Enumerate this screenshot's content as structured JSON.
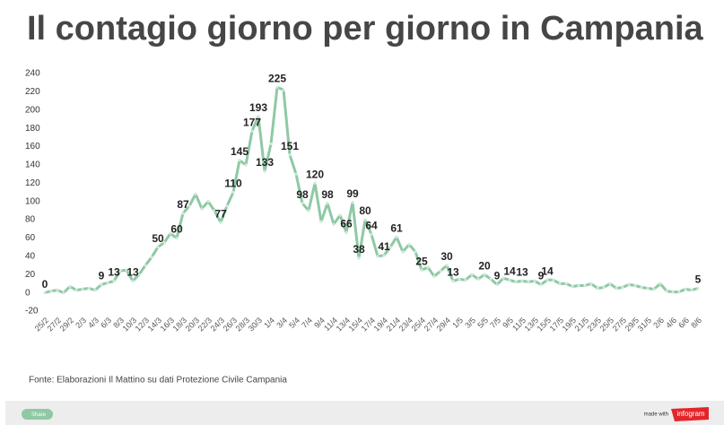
{
  "chart_data": {
    "type": "line",
    "title": "Il contagio giorno per giorno in Campania",
    "categories": [
      "25/2",
      null,
      "27/2",
      null,
      "29/2",
      null,
      "2/3",
      null,
      "4/3",
      null,
      "6/3",
      null,
      "8/3",
      null,
      "10/3",
      null,
      "12/3",
      null,
      "14/3",
      null,
      "16/3",
      null,
      "18/3",
      null,
      "20/3",
      null,
      "22/3",
      null,
      "24/3",
      null,
      "26/3",
      null,
      "28/3",
      null,
      "30/3",
      null,
      "1/4",
      null,
      "3/4",
      null,
      "5/4",
      null,
      "7/4",
      null,
      "9/4",
      null,
      "11/4",
      null,
      "13/4",
      null,
      "15/4",
      null,
      "17/4",
      null,
      "19/4",
      null,
      "21/4",
      null,
      "23/4",
      null,
      "25/4",
      null,
      "27/4",
      null,
      "29/4",
      null,
      "1/5",
      null,
      "3/5",
      null,
      "5/5",
      null,
      "7/5",
      null,
      "9/5",
      null,
      "11/5",
      null,
      "13/5",
      null,
      "15/5",
      null,
      "17/5",
      null,
      "19/5",
      null,
      "21/5",
      null,
      "23/5",
      null,
      "25/5",
      null,
      "27/5",
      null,
      "29/5",
      null,
      "31/5",
      null,
      "2/6",
      null,
      "4/6",
      null,
      "6/6",
      null,
      "8/6"
    ],
    "values": [
      0,
      2,
      3,
      0,
      7,
      3,
      4,
      5,
      3,
      9,
      11,
      13,
      24,
      25,
      13,
      20,
      30,
      39,
      50,
      55,
      65,
      60,
      87,
      95,
      108,
      92,
      100,
      90,
      77,
      95,
      110,
      145,
      140,
      177,
      193,
      133,
      163,
      225,
      222,
      151,
      130,
      98,
      90,
      120,
      78,
      98,
      75,
      85,
      66,
      99,
      38,
      80,
      64,
      40,
      41,
      50,
      61,
      45,
      53,
      45,
      25,
      28,
      18,
      24,
      30,
      13,
      15,
      14,
      20,
      15,
      20,
      15,
      9,
      16,
      14,
      12,
      13,
      12,
      13,
      9,
      14,
      14,
      10,
      10,
      7,
      8,
      8,
      10,
      5,
      6,
      10,
      5,
      6,
      9,
      8,
      6,
      5,
      4,
      10,
      2,
      1,
      1,
      4,
      3,
      5
    ],
    "value_labels": [
      0,
      null,
      null,
      null,
      null,
      null,
      null,
      null,
      null,
      9,
      null,
      13,
      null,
      null,
      13,
      null,
      null,
      null,
      50,
      null,
      null,
      60,
      87,
      null,
      null,
      null,
      null,
      null,
      77,
      null,
      110,
      145,
      null,
      177,
      193,
      133,
      null,
      225,
      null,
      151,
      null,
      98,
      null,
      120,
      null,
      98,
      null,
      null,
      66,
      99,
      38,
      80,
      64,
      null,
      41,
      null,
      61,
      null,
      null,
      null,
      25,
      null,
      null,
      null,
      30,
      13,
      null,
      null,
      null,
      null,
      20,
      null,
      9,
      null,
      14,
      null,
      13,
      null,
      null,
      9,
      14,
      null,
      null,
      null,
      null,
      null,
      null,
      null,
      null,
      null,
      null,
      null,
      null,
      null,
      null,
      null,
      null,
      null,
      null,
      null,
      null,
      null,
      null,
      null,
      5
    ],
    "color": "#8ec9a4",
    "ylim": [
      -20,
      240
    ],
    "yticks": [
      -20,
      0,
      20,
      40,
      60,
      80,
      100,
      120,
      140,
      160,
      180,
      200,
      220,
      240
    ],
    "grid": false
  },
  "source": "Fonte: Elaborazioni Il Mattino su dati Protezione Civile Campania",
  "share_button": "Share",
  "made_with": "made with",
  "brand": "infogram"
}
